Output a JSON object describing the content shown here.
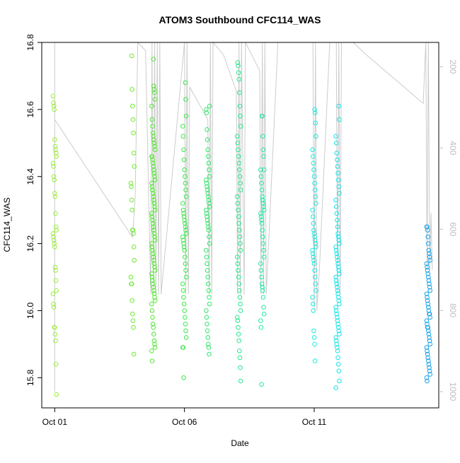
{
  "chart_data": {
    "type": "scatter",
    "title": "ATOM3 Southbound CFC114_WAS",
    "xlabel": "Date",
    "ylabel": "CFC114_WAS",
    "x_unit": "day of October",
    "xlim": [
      0.5,
      15.8
    ],
    "ylim": [
      15.71,
      16.8
    ],
    "y_ticks": [
      15.8,
      16.0,
      16.2,
      16.4,
      16.6,
      16.8
    ],
    "y_tick_labels": [
      "15.8",
      "16.0",
      "16.2",
      "16.4",
      "16.6",
      "16.8"
    ],
    "x_ticks": [
      1,
      6,
      11
    ],
    "x_tick_labels": [
      "Oct 01",
      "Oct 06",
      "Oct 11"
    ],
    "y2_label": "",
    "y2_range": [
      1040,
      140
    ],
    "y2_ticks": [
      200,
      400,
      600,
      800,
      1000
    ],
    "y2_tick_labels": [
      "200",
      "400",
      "600",
      "800",
      "1000"
    ],
    "colors": {
      "trace": "#cccccc",
      "axis": "#000000",
      "y2_axis": "#bdbdbd",
      "col_day1": "#9bee3a",
      "col_day4": "#5fe830",
      "col_day6": "#2ee85a",
      "col_day8": "#22eaa0",
      "col_day11": "#1ae8e8",
      "col_day15": "#1aa2e8"
    },
    "clusters": [
      {
        "date": 1.0,
        "color": "#9bee3a",
        "values": [
          16.64,
          16.62,
          16.61,
          16.6,
          16.51,
          16.49,
          16.48,
          16.47,
          16.46,
          16.44,
          16.43,
          16.4,
          16.39,
          16.35,
          16.34,
          16.29,
          16.25,
          16.24,
          16.23,
          16.22,
          16.21,
          16.2,
          16.19,
          16.13,
          16.12,
          16.09,
          16.06,
          16.05,
          16.02,
          16.01,
          15.95,
          15.95,
          15.93,
          15.91,
          15.84,
          15.75
        ]
      },
      {
        "date": 4.0,
        "color": "#6fea30",
        "values": [
          16.76,
          16.66,
          16.61,
          16.57,
          16.53,
          16.47,
          16.43,
          16.38,
          16.37,
          16.33,
          16.3,
          16.24,
          16.24,
          16.23,
          16.19,
          16.15,
          16.1,
          16.08,
          16.08,
          16.03,
          15.99,
          15.97,
          15.95,
          15.87
        ]
      },
      {
        "date": 4.8,
        "color": "#52e833",
        "values": [
          16.75,
          16.67,
          16.66,
          16.65,
          16.63,
          16.61,
          16.57,
          16.55,
          16.53,
          16.52,
          16.51,
          16.5,
          16.49,
          16.48,
          16.46,
          16.46,
          16.45,
          16.44,
          16.43,
          16.42,
          16.41,
          16.4,
          16.39,
          16.38,
          16.37,
          16.36,
          16.35,
          16.34,
          16.33,
          16.32,
          16.31,
          16.3,
          16.29,
          16.28,
          16.27,
          16.26,
          16.25,
          16.24,
          16.23,
          16.22,
          16.21,
          16.2,
          16.19,
          16.18,
          16.17,
          16.16,
          16.15,
          16.14,
          16.13,
          16.12,
          16.11,
          16.1,
          16.09,
          16.08,
          16.07,
          16.06,
          16.05,
          16.04,
          16.03,
          16.02,
          16.0,
          15.98,
          15.96,
          15.95,
          15.93,
          15.91,
          15.9,
          15.89,
          15.88,
          15.85
        ]
      },
      {
        "date": 6.0,
        "color": "#3ae84a",
        "values": [
          16.68,
          16.63,
          16.58,
          16.55,
          16.52,
          16.48,
          16.45,
          16.42,
          16.4,
          16.38,
          16.36,
          16.34,
          16.32,
          16.3,
          16.29,
          16.28,
          16.27,
          16.26,
          16.25,
          16.24,
          16.23,
          16.22,
          16.21,
          16.2,
          16.19,
          16.18,
          16.16,
          16.14,
          16.12,
          16.1,
          16.08,
          16.06,
          16.04,
          16.02,
          16.0,
          15.98,
          15.96,
          15.94,
          15.92,
          15.89,
          15.89,
          15.8
        ]
      },
      {
        "date": 6.9,
        "color": "#2ee868",
        "values": [
          16.61,
          16.6,
          16.59,
          16.54,
          16.51,
          16.48,
          16.46,
          16.44,
          16.42,
          16.4,
          16.39,
          16.38,
          16.37,
          16.36,
          16.35,
          16.34,
          16.33,
          16.32,
          16.31,
          16.3,
          16.29,
          16.28,
          16.27,
          16.26,
          16.25,
          16.24,
          16.22,
          16.2,
          16.18,
          16.16,
          16.14,
          16.12,
          16.1,
          16.08,
          16.06,
          16.04,
          16.02,
          16.0,
          15.98,
          15.96,
          15.94,
          15.92,
          15.9,
          15.89,
          15.87
        ]
      },
      {
        "date": 8.1,
        "color": "#25e88c",
        "values": [
          16.74,
          16.73,
          16.71,
          16.69,
          16.65,
          16.61,
          16.58,
          16.55,
          16.52,
          16.5,
          16.48,
          16.46,
          16.44,
          16.42,
          16.4,
          16.38,
          16.36,
          16.34,
          16.32,
          16.3,
          16.28,
          16.26,
          16.24,
          16.22,
          16.2,
          16.18,
          16.16,
          16.14,
          16.12,
          16.1,
          16.08,
          16.06,
          16.04,
          16.02,
          16.0,
          15.98,
          15.97,
          15.95,
          15.93,
          15.91,
          15.88,
          15.86,
          15.83,
          15.79
        ]
      },
      {
        "date": 9.0,
        "color": "#22e8a6",
        "values": [
          16.58,
          16.58,
          16.52,
          16.48,
          16.46,
          16.42,
          16.42,
          16.4,
          16.38,
          16.36,
          16.34,
          16.33,
          16.32,
          16.31,
          16.3,
          16.29,
          16.28,
          16.27,
          16.26,
          16.24,
          16.22,
          16.2,
          16.18,
          16.16,
          16.14,
          16.12,
          16.1,
          16.08,
          16.07,
          16.06,
          16.04,
          16.01,
          15.99,
          15.97,
          15.95,
          15.78
        ]
      },
      {
        "date": 11.0,
        "color": "#1de8df",
        "values": [
          16.6,
          16.59,
          16.56,
          16.52,
          16.48,
          16.46,
          16.44,
          16.42,
          16.4,
          16.38,
          16.36,
          16.34,
          16.32,
          16.3,
          16.28,
          16.26,
          16.24,
          16.23,
          16.22,
          16.21,
          16.2,
          16.19,
          16.18,
          16.17,
          16.16,
          16.15,
          16.14,
          16.12,
          16.1,
          16.08,
          16.06,
          16.04,
          16.02,
          16.0,
          15.94,
          15.92,
          15.9,
          15.85
        ]
      },
      {
        "date": 11.9,
        "color": "#1ae2ea",
        "values": [
          16.61,
          16.57,
          16.52,
          16.5,
          16.47,
          16.45,
          16.43,
          16.41,
          16.39,
          16.37,
          16.35,
          16.33,
          16.31,
          16.29,
          16.27,
          16.25,
          16.23,
          16.22,
          16.21,
          16.2,
          16.19,
          16.18,
          16.17,
          16.16,
          16.15,
          16.14,
          16.13,
          16.12,
          16.11,
          16.1,
          16.09,
          16.08,
          16.07,
          16.06,
          16.05,
          16.04,
          16.03,
          16.02,
          16.01,
          16.0,
          15.99,
          15.98,
          15.97,
          15.96,
          15.95,
          15.94,
          15.93,
          15.92,
          15.91,
          15.9,
          15.89,
          15.88,
          15.86,
          15.84,
          15.82,
          15.79,
          15.77
        ]
      },
      {
        "date": 15.4,
        "color": "#1aa2e8",
        "values": [
          16.25,
          16.25,
          16.24,
          16.22,
          16.2,
          16.18,
          16.17,
          16.16,
          16.15,
          16.14,
          16.13,
          16.12,
          16.11,
          16.1,
          16.09,
          16.08,
          16.07,
          16.06,
          16.05,
          16.04,
          16.03,
          16.02,
          16.01,
          16.0,
          15.99,
          15.99,
          15.98,
          15.97,
          15.96,
          15.95,
          15.95,
          15.94,
          15.93,
          15.92,
          15.91,
          15.9,
          15.89,
          15.88,
          15.87,
          15.86,
          15.85,
          15.84,
          15.83,
          15.82,
          15.81,
          15.8,
          15.79
        ]
      }
    ],
    "altitude_trace": {
      "description": "grey line: sampling pressure/altitude on secondary axis",
      "points": [
        [
          0.5,
          140
        ],
        [
          1.0,
          140
        ],
        [
          1.0,
          330
        ],
        [
          1.0,
          1000
        ],
        [
          1.0,
          330
        ],
        [
          4.0,
          620
        ],
        [
          4.1,
          520
        ],
        [
          4.2,
          140
        ],
        [
          4.5,
          160
        ],
        [
          4.7,
          760
        ],
        [
          4.75,
          140
        ],
        [
          4.8,
          760
        ],
        [
          4.85,
          140
        ],
        [
          4.9,
          760
        ],
        [
          4.95,
          140
        ],
        [
          5.0,
          760
        ],
        [
          5.05,
          140
        ],
        [
          5.1,
          760
        ],
        [
          6.0,
          140
        ],
        [
          6.05,
          760
        ],
        [
          6.1,
          140
        ],
        [
          6.15,
          760
        ],
        [
          6.2,
          250
        ],
        [
          6.9,
          330
        ],
        [
          6.95,
          760
        ],
        [
          7.0,
          140
        ],
        [
          7.05,
          760
        ],
        [
          7.1,
          140
        ],
        [
          7.5,
          170
        ],
        [
          8.0,
          260
        ],
        [
          8.05,
          760
        ],
        [
          8.1,
          140
        ],
        [
          8.15,
          760
        ],
        [
          8.2,
          140
        ],
        [
          8.3,
          760
        ],
        [
          8.35,
          140
        ],
        [
          8.9,
          210
        ],
        [
          8.95,
          760
        ],
        [
          9.0,
          140
        ],
        [
          9.05,
          760
        ],
        [
          9.1,
          140
        ],
        [
          9.15,
          760
        ],
        [
          9.6,
          140
        ],
        [
          10.5,
          140
        ],
        [
          10.95,
          140
        ],
        [
          11.0,
          800
        ],
        [
          11.05,
          140
        ],
        [
          11.1,
          800
        ],
        [
          11.2,
          700
        ],
        [
          11.6,
          140
        ],
        [
          11.85,
          140
        ],
        [
          11.9,
          760
        ],
        [
          11.95,
          140
        ],
        [
          12.0,
          760
        ],
        [
          12.05,
          140
        ],
        [
          12.5,
          140
        ],
        [
          13.0,
          170
        ],
        [
          15.2,
          290
        ],
        [
          15.3,
          140
        ],
        [
          15.35,
          700
        ],
        [
          15.4,
          140
        ],
        [
          15.45,
          700
        ],
        [
          15.5,
          560
        ],
        [
          15.55,
          700
        ]
      ]
    }
  }
}
